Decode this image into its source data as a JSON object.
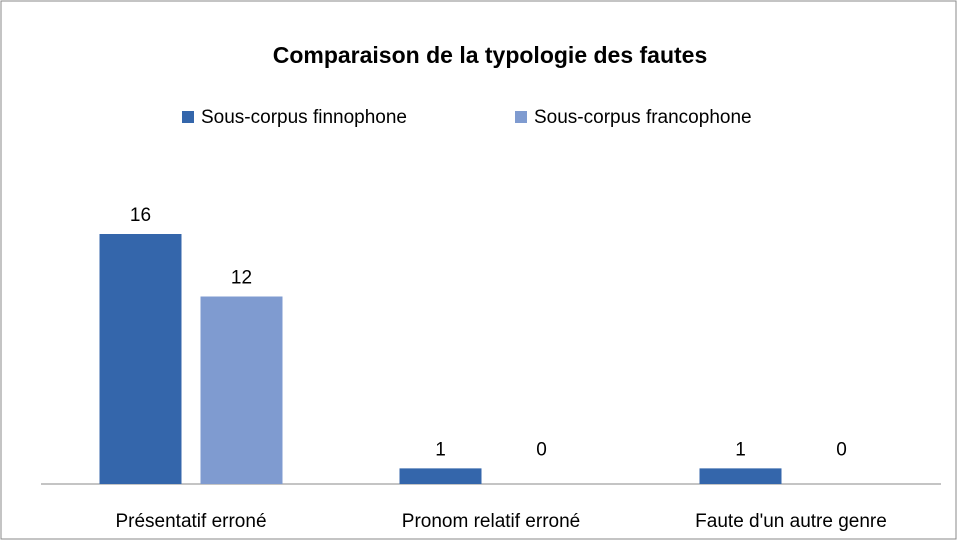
{
  "chart_data": {
    "type": "bar",
    "title": "Comparaison de la typologie des fautes",
    "categories": [
      "Présentatif erroné",
      "Pronom relatif erroné",
      "Faute d'un autre genre"
    ],
    "series": [
      {
        "name": "Sous-corpus finnophone",
        "color": "#3466ab",
        "values": [
          16,
          1,
          1
        ]
      },
      {
        "name": "Sous-corpus francophone",
        "color": "#7f9bd0",
        "values": [
          12,
          0,
          0
        ]
      }
    ],
    "ylim": [
      0,
      20
    ],
    "legend": "top"
  }
}
